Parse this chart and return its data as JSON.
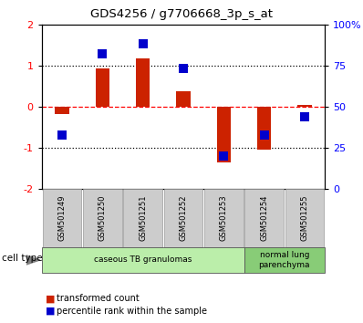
{
  "title": "GDS4256 / g7706668_3p_s_at",
  "samples": [
    "GSM501249",
    "GSM501250",
    "GSM501251",
    "GSM501252",
    "GSM501253",
    "GSM501254",
    "GSM501255"
  ],
  "transformed_count": [
    -0.18,
    0.93,
    1.18,
    0.38,
    -1.35,
    -1.05,
    0.03
  ],
  "percentile_rank_raw": [
    33,
    82,
    88,
    73,
    20,
    33,
    44
  ],
  "bar_color": "#cc2200",
  "dot_color": "#0000cc",
  "ylim_left": [
    -2,
    2
  ],
  "ylim_right": [
    0,
    100
  ],
  "yticks_left": [
    -2,
    -1,
    0,
    1,
    2
  ],
  "yticks_right": [
    0,
    25,
    50,
    75,
    100
  ],
  "ytick_labels_right": [
    "0",
    "25",
    "50",
    "75",
    "100%"
  ],
  "ytick_labels_left": [
    "-2",
    "-1",
    "0",
    "1",
    "2"
  ],
  "cell_type_groups": [
    {
      "label": "caseous TB granulomas",
      "start": 0,
      "end": 5,
      "color": "#bbeeaa"
    },
    {
      "label": "normal lung\nparenchyma",
      "start": 5,
      "end": 7,
      "color": "#88cc77"
    }
  ],
  "cell_type_label": "cell type",
  "legend_items": [
    {
      "color": "#cc2200",
      "label": "transformed count"
    },
    {
      "color": "#0000cc",
      "label": "percentile rank within the sample"
    }
  ],
  "bar_width": 0.35,
  "dot_size": 45,
  "background_color": "#ffffff"
}
